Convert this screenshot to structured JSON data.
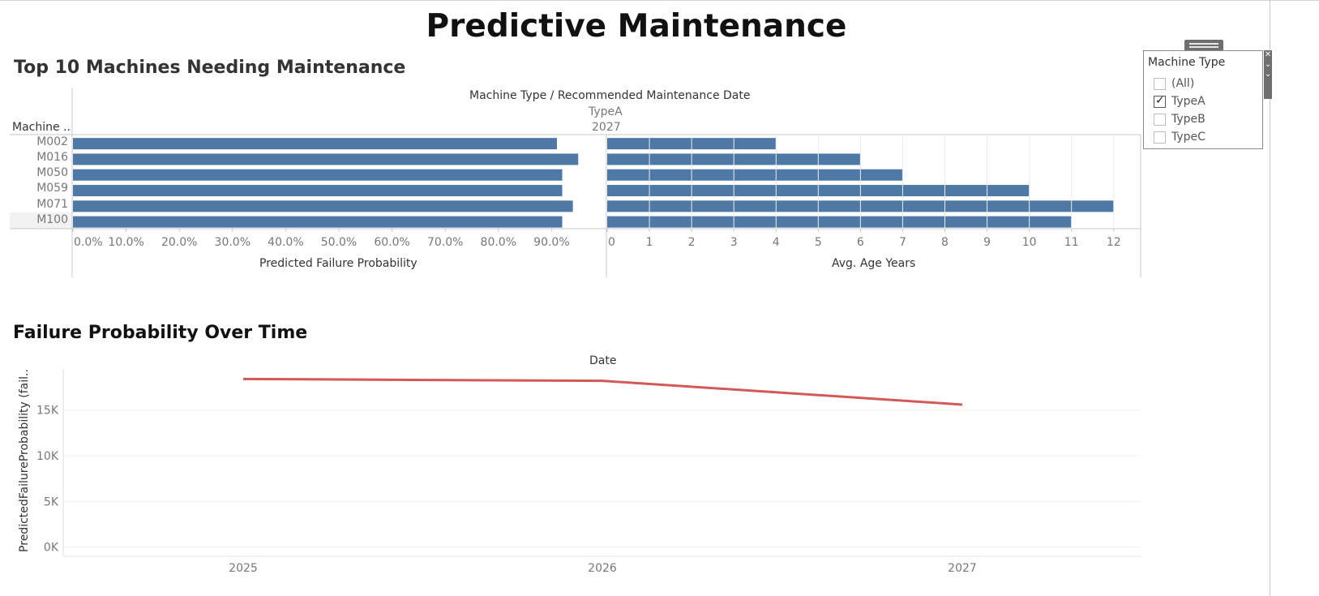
{
  "page": {
    "title": "Predictive Maintenance"
  },
  "bar_section": {
    "title": "Top 10 Machines Needing Maintenance",
    "column_header": "Machine Type  /  Recommended Maintenance Date",
    "type_value": "TypeA",
    "year_value": "2027",
    "row_header": "Machine ..",
    "left_axis_title": "Predicted Failure Probability",
    "right_axis_title": "Avg. Age Years"
  },
  "line_section": {
    "title": "Failure Probability Over Time",
    "top_label": "Date",
    "y_axis_title": "PredictedFailureProbability (fail.."
  },
  "filter": {
    "title": "Machine Type",
    "options": [
      {
        "label": "(All)",
        "checked": false
      },
      {
        "label": "TypeA",
        "checked": true
      },
      {
        "label": "TypeB",
        "checked": false
      },
      {
        "label": "TypeC",
        "checked": false
      }
    ]
  },
  "colors": {
    "bar": "#4e79a7",
    "line": "#d45a5a",
    "grid": "#ececec",
    "axis": "#c8c8c8"
  },
  "chart_data": [
    {
      "type": "bar",
      "orientation": "horizontal",
      "categories": [
        "M002",
        "M016",
        "M050",
        "M059",
        "M071",
        "M100"
      ],
      "values": [
        0.91,
        0.95,
        0.92,
        0.92,
        0.94,
        0.92
      ],
      "xlabel": "Predicted Failure Probability",
      "xlim": [
        0,
        1.0
      ],
      "ticks": [
        "0.0%",
        "10.0%",
        "20.0%",
        "30.0%",
        "40.0%",
        "50.0%",
        "60.0%",
        "70.0%",
        "80.0%",
        "90.0%"
      ],
      "tick_values": [
        0,
        0.1,
        0.2,
        0.3,
        0.4,
        0.5,
        0.6,
        0.7,
        0.8,
        0.9
      ]
    },
    {
      "type": "bar",
      "orientation": "horizontal",
      "categories": [
        "M002",
        "M016",
        "M050",
        "M059",
        "M071",
        "M100"
      ],
      "values": [
        4,
        6,
        7,
        10,
        12,
        11
      ],
      "xlabel": "Avg. Age Years",
      "xlim": [
        0,
        12.6
      ],
      "ticks": [
        "0",
        "1",
        "2",
        "3",
        "4",
        "5",
        "6",
        "7",
        "8",
        "9",
        "10",
        "11",
        "12"
      ],
      "tick_values": [
        0,
        1,
        2,
        3,
        4,
        5,
        6,
        7,
        8,
        9,
        10,
        11,
        12
      ]
    },
    {
      "type": "line",
      "x": [
        "2025",
        "2026",
        "2027"
      ],
      "values": [
        18400,
        18200,
        15600
      ],
      "ylabel": "PredictedFailureProbability (fail..",
      "ylim": [
        -1000,
        19500
      ],
      "yticks": [
        "0K",
        "5K",
        "10K",
        "15K"
      ],
      "ytick_values": [
        0,
        5000,
        10000,
        15000
      ],
      "grid": true
    }
  ]
}
